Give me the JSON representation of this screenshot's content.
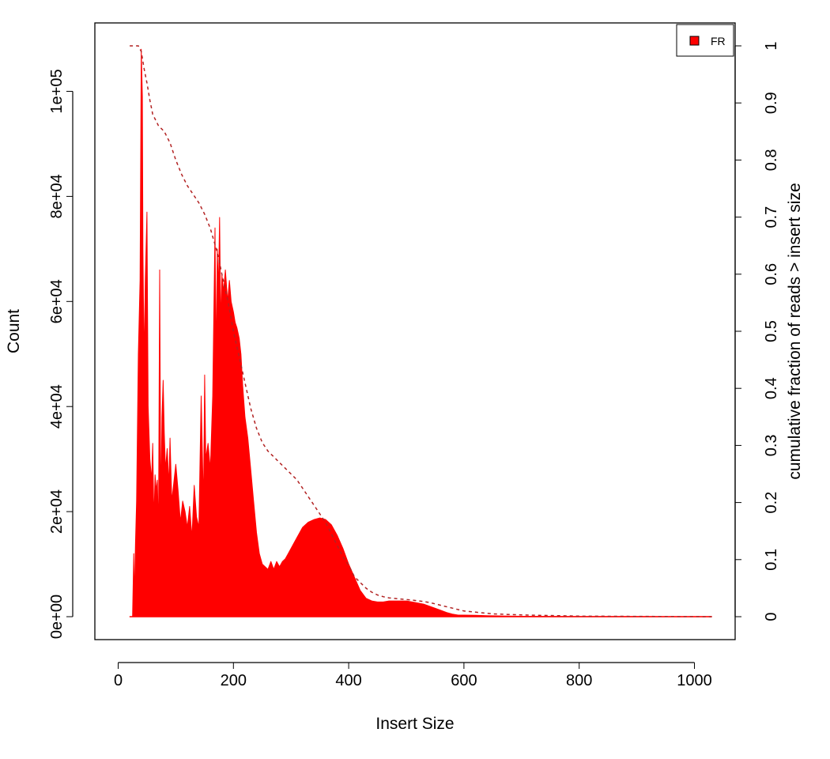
{
  "chart_data": {
    "type": "area",
    "title": "",
    "xlabel": "Insert Size",
    "ylabel": "Count",
    "ylabel_right": "cumulative fraction of reads > insert size",
    "xlim": [
      0,
      1050
    ],
    "ylim": [
      -5000,
      113000
    ],
    "ylim_right": [
      0,
      1
    ],
    "x_ticks": [
      0,
      200,
      400,
      600,
      800,
      1000
    ],
    "x_tick_labels": [
      "0",
      "200",
      "400",
      "600",
      "800",
      "1000"
    ],
    "y_ticks": [
      0,
      20000,
      40000,
      60000,
      80000,
      100000
    ],
    "y_tick_labels": [
      "0e+00",
      "2e+04",
      "4e+04",
      "6e+04",
      "8e+04",
      "1e+05"
    ],
    "y_right_ticks": [
      0,
      0.1,
      0.2,
      0.3,
      0.4,
      0.5,
      0.6,
      0.7,
      0.8,
      0.9,
      1
    ],
    "y_right_tick_labels": [
      "0",
      "0.1",
      "0.2",
      "0.3",
      "0.4",
      "0.5",
      "0.6",
      "0.7",
      "0.8",
      "0.9",
      "1"
    ],
    "grid": false,
    "legend_position": "top-right",
    "legend": [
      {
        "label": "FR",
        "color": "#ff0000"
      }
    ],
    "series": [
      {
        "name": "FR",
        "kind": "histogram-area",
        "color": "#ff0000",
        "x": [
          20,
          25,
          27,
          28,
          30,
          32,
          35,
          38,
          40,
          42,
          43,
          45,
          47,
          50,
          52,
          55,
          58,
          60,
          62,
          64,
          66,
          68,
          70,
          72,
          74,
          76,
          78,
          80,
          82,
          85,
          88,
          90,
          93,
          96,
          100,
          104,
          108,
          112,
          116,
          120,
          124,
          128,
          132,
          136,
          140,
          144,
          148,
          150,
          152,
          156,
          160,
          164,
          168,
          170,
          172,
          174,
          176,
          178,
          180,
          183,
          186,
          190,
          193,
          196,
          200,
          203,
          206,
          210,
          213,
          216,
          220,
          225,
          230,
          235,
          240,
          245,
          250,
          255,
          260,
          265,
          270,
          275,
          280,
          285,
          290,
          295,
          300,
          305,
          310,
          315,
          320,
          330,
          340,
          350,
          360,
          370,
          380,
          390,
          400,
          410,
          420,
          430,
          440,
          450,
          460,
          470,
          480,
          490,
          500,
          510,
          520,
          530,
          540,
          550,
          560,
          570,
          580,
          590,
          600,
          620,
          640,
          660,
          680,
          700,
          750,
          800,
          850,
          900,
          950,
          1000,
          1030
        ],
        "values": [
          0,
          0,
          12000,
          3000,
          14000,
          22000,
          50000,
          64000,
          108000,
          99000,
          70000,
          48000,
          64000,
          77000,
          40000,
          30000,
          26000,
          33000,
          18000,
          27000,
          24000,
          26000,
          15000,
          66000,
          20000,
          38000,
          45000,
          35000,
          28000,
          32000,
          25000,
          34000,
          22000,
          25000,
          29000,
          24000,
          18000,
          22000,
          20000,
          17000,
          21000,
          15000,
          25000,
          19000,
          17000,
          42000,
          21000,
          46000,
          30000,
          33000,
          28000,
          42000,
          74000,
          48000,
          70000,
          62000,
          76000,
          55000,
          65000,
          62000,
          66000,
          60000,
          64000,
          60000,
          58000,
          56000,
          55000,
          53000,
          50000,
          44000,
          38000,
          34000,
          28000,
          22000,
          16000,
          12000,
          10000,
          9500,
          9000,
          10500,
          9000,
          10500,
          9500,
          10500,
          11000,
          12000,
          13000,
          14000,
          15000,
          16000,
          17000,
          18000,
          18500,
          18800,
          18500,
          17500,
          15500,
          13000,
          10000,
          7500,
          5000,
          3500,
          3000,
          2800,
          2800,
          3000,
          3000,
          3000,
          3000,
          2800,
          2600,
          2400,
          2000,
          1600,
          1200,
          800,
          500,
          300,
          300,
          250,
          200,
          150,
          100,
          80,
          60,
          50,
          40,
          30,
          20,
          15,
          10
        ]
      },
      {
        "name": "",
        "kind": "cumulative-fraction",
        "axis": "right",
        "color": "#b22222",
        "dash": "dashed",
        "x": [
          20,
          30,
          35,
          40,
          45,
          50,
          55,
          60,
          70,
          80,
          90,
          100,
          110,
          120,
          130,
          140,
          150,
          160,
          170,
          175,
          180,
          190,
          200,
          210,
          220,
          230,
          240,
          250,
          260,
          270,
          280,
          290,
          300,
          310,
          320,
          330,
          340,
          350,
          360,
          370,
          380,
          390,
          400,
          410,
          420,
          430,
          440,
          450,
          460,
          470,
          480,
          500,
          520,
          540,
          560,
          580,
          600,
          650,
          700,
          800,
          900,
          1030
        ],
        "values": [
          1.0,
          1.0,
          1.0,
          0.99,
          0.96,
          0.935,
          0.905,
          0.88,
          0.86,
          0.85,
          0.83,
          0.8,
          0.775,
          0.755,
          0.74,
          0.725,
          0.705,
          0.68,
          0.645,
          0.625,
          0.6,
          0.555,
          0.5,
          0.455,
          0.41,
          0.365,
          0.33,
          0.305,
          0.29,
          0.28,
          0.27,
          0.26,
          0.25,
          0.24,
          0.225,
          0.21,
          0.195,
          0.18,
          0.165,
          0.145,
          0.125,
          0.105,
          0.09,
          0.07,
          0.06,
          0.05,
          0.043,
          0.038,
          0.035,
          0.033,
          0.032,
          0.03,
          0.028,
          0.025,
          0.02,
          0.015,
          0.01,
          0.005,
          0.003,
          0.001,
          0.0005,
          0.0
        ]
      }
    ]
  }
}
